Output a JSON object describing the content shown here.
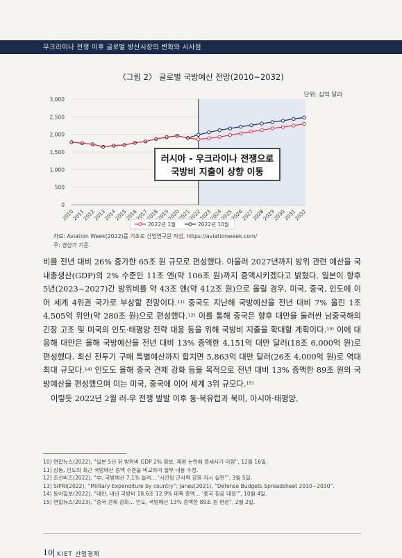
{
  "header": {
    "running_title": "우크라이나 전쟁 이후 글로벌 방산시장의 변화와 시사점"
  },
  "figure": {
    "title": "〈그림 2〉 글로벌 국방예산 전망(2010~2032)",
    "unit": "단위: 십억 달러",
    "annotation": [
      "러시아 - 우크라이나 전쟁으로",
      "국방비 지출이 상향 이동"
    ],
    "source": "자료: Aviation Week(2022)를 기초로 산업연구원 작성, https://aviationweek.com/",
    "note": "주: 경상가 기준."
  },
  "chart_data": {
    "type": "line",
    "x": [
      2010,
      2011,
      2012,
      2013,
      2014,
      2015,
      2016,
      2017,
      2018,
      2019,
      2020,
      2021,
      2022,
      2023,
      2024,
      2025,
      2026,
      2027,
      2028,
      2029,
      2030,
      2031,
      2032
    ],
    "ylim": [
      0,
      3000
    ],
    "yticks": [
      "0",
      "500",
      "1,000",
      "1,500",
      "2,000",
      "2,500",
      "3,000"
    ],
    "forecast_from": 2022,
    "legend_position": "bottom",
    "series": [
      {
        "name": "2022년 1월",
        "color": "#e0333a",
        "values": [
          1780,
          1750,
          1720,
          1650,
          1680,
          1700,
          1760,
          1800,
          1870,
          1920,
          1960,
          1900,
          1860,
          1890,
          1930,
          1980,
          2030,
          2080,
          2120,
          2170,
          2210,
          2250,
          2300
        ]
      },
      {
        "name": "2022년 10월",
        "color": "#1e2a5a",
        "values": [
          1780,
          1750,
          1720,
          1650,
          1680,
          1700,
          1760,
          1800,
          1870,
          1920,
          1960,
          1900,
          1990,
          2060,
          2120,
          2170,
          2220,
          2260,
          2310,
          2350,
          2390,
          2440,
          2480
        ]
      }
    ]
  },
  "body": {
    "p1_a": "비를 전년 대비 26% 증가한 65조 원 규모로 편성했다. 아울러 2027년까지 방위 관련 예산을 국내총생산(GDP)의 2% 수준인 11조 엔(약 106조 원)까지 증액시키겠다고 밝혔다. 일본이 향후 5년(2023~2027)간 방위비를 약 43조 엔(약 412조 원)으로 올릴 경우, 미국, 중국, 인도에 이어 세계 4위권 국가로 부상할 전망이다.",
    "fn11": "11)",
    "p1_b": " 중국도 지난해 국방예산을 전년 대비 7% 올린 1조 4,505억 위안(약 280조 원)으로 편성했다.",
    "fn12": "12)",
    "p1_c": " 이를 통해 중국은 향후 대만을 둘러싼 남중국해의 긴장 고조 및 미국의 인도·태평양 전략 대응 등을 위해 국방비 지출을 확대할 계획이다.",
    "fn13": "13)",
    "p1_d": " 이에 대응해 대만은 올해 국방예산을 전년 대비 13% 증액한 4,151억 대만 달러(18조 6,000억 원)로 편성했다. 최신 전투기 구매 특별예산까지 합치면 5,863억 대만 달러(26조 4,000억 원)로 역대 최대 규모다.",
    "fn14": "14)",
    "p1_e": " 인도도 올해 중국 견제 강화 등을 목적으로 전년 대비 13% 증액한 89조 원의 국방예산을 편성했으며 이는 미국, 중국에 이어 세계 3위 규모다.",
    "fn15": "15)",
    "p2": "이렇듯 2022년 2월 러-우 전쟁 발발 이후 동·북유럽과 북미, 아시아·태평양,"
  },
  "footnotes": [
    "10) 연합뉴스(2022), “일본 5년 뒤 방위비 GDP 2% 확보, 재원 논란에 증세시기 미정”, 12월 16일.",
    "11) 상동, 인도의 최근 국방예산 증액 수준을 비교하여 일부 내용 수정.",
    "12) 조선비즈(2022), “中, 국방예산 7.1% 늘려… ‘시진핑 군사력 강화 지시 실현’”, 3월 5일.",
    "13) SIPRI(2022), “Military Expenditure by country”; Janes(2021), “Defense Budgets Spreadsheet 2010~2030”.",
    "14) 동아일보(2022), “대만, 내년 국방비 18.6조 12.9% 대폭 증액… ‘중국 침공 대응’”, 10월 4일.",
    "15) 연합뉴스(2023), “중국 견제 강화… 인도, 국방예산 13% 증액한 89조 원 편성”, 2월 2일."
  ],
  "footer": {
    "page_number": "10",
    "journal": "KIET 산업경제"
  }
}
